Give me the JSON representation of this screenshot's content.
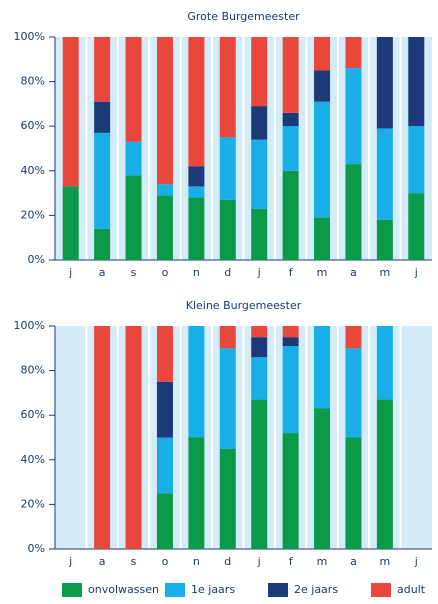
{
  "chart_data": [
    {
      "type": "bar",
      "stacked": true,
      "title": "Grote Burgemeester",
      "categories": [
        "j",
        "a",
        "s",
        "o",
        "n",
        "d",
        "j",
        "f",
        "m",
        "a",
        "m",
        "j"
      ],
      "ylim": [
        0,
        100
      ],
      "yticks": [
        {
          "value": 0,
          "label": "0%"
        },
        {
          "value": 20,
          "label": "20%"
        },
        {
          "value": 40,
          "label": "40%"
        },
        {
          "value": 60,
          "label": "60%"
        },
        {
          "value": 80,
          "label": "80%"
        },
        {
          "value": 100,
          "label": "100%"
        }
      ],
      "series": [
        {
          "color": "#0a9a4a",
          "values": [
            33,
            14,
            38,
            29,
            28,
            27,
            23,
            40,
            19,
            43,
            18,
            30
          ]
        },
        {
          "color": "#18aee8",
          "values": [
            0,
            43,
            15,
            5,
            5,
            28,
            31,
            20,
            52,
            43,
            41,
            30
          ]
        },
        {
          "color": "#1c3a78",
          "values": [
            0,
            14,
            0,
            0,
            9,
            0,
            15,
            6,
            14,
            0,
            41,
            40
          ]
        },
        {
          "color": "#e8483c",
          "values": [
            67,
            29,
            47,
            66,
            58,
            45,
            31,
            34,
            15,
            14,
            0,
            0
          ]
        }
      ]
    },
    {
      "type": "bar",
      "stacked": true,
      "title": "Kleine Burgemeester",
      "categories": [
        "j",
        "a",
        "s",
        "o",
        "n",
        "d",
        "j",
        "f",
        "m",
        "a",
        "m",
        "j"
      ],
      "ylim": [
        0,
        100
      ],
      "yticks": [
        {
          "value": 0,
          "label": "0%"
        },
        {
          "value": 20,
          "label": "20%"
        },
        {
          "value": 40,
          "label": "40%"
        },
        {
          "value": 60,
          "label": "60%"
        },
        {
          "value": 80,
          "label": "80%"
        },
        {
          "value": 100,
          "label": "100%"
        }
      ],
      "series": [
        {
          "name": "onvolwassen",
          "color": "#0a9a4a",
          "values": [
            0,
            0,
            0,
            25,
            50,
            45,
            67,
            52,
            63,
            50,
            67,
            0
          ]
        },
        {
          "name": "1e jaars",
          "color": "#18aee8",
          "values": [
            0,
            0,
            0,
            25,
            50,
            45,
            19,
            39,
            37,
            40,
            33,
            0
          ]
        },
        {
          "name": "2e jaars",
          "color": "#1c3a78",
          "values": [
            0,
            0,
            0,
            25,
            0,
            0,
            9,
            4,
            0,
            0,
            0,
            0
          ]
        },
        {
          "name": "adult",
          "color": "#e8483c",
          "values": [
            0,
            100,
            100,
            25,
            0,
            10,
            5,
            5,
            0,
            10,
            0,
            0
          ]
        }
      ]
    }
  ]
}
